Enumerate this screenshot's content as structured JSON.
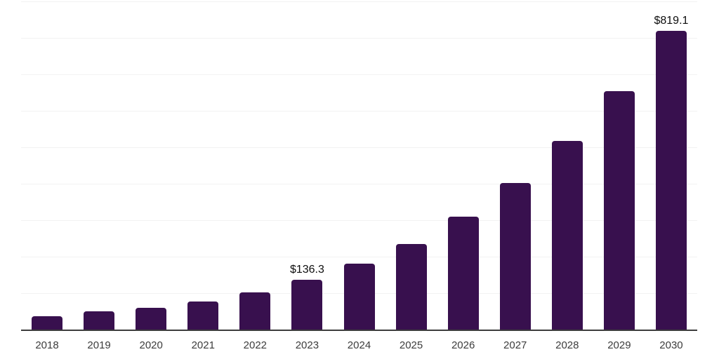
{
  "chart_data": {
    "type": "bar",
    "title": "",
    "xlabel": "",
    "ylabel": "",
    "categories": [
      "2018",
      "2019",
      "2020",
      "2021",
      "2022",
      "2023",
      "2024",
      "2025",
      "2026",
      "2027",
      "2028",
      "2029",
      "2030"
    ],
    "values": [
      37.5,
      50.0,
      60.2,
      77.9,
      102.9,
      136.3,
      180.8,
      235.2,
      309.6,
      401.3,
      516.7,
      653.8,
      819.1
    ],
    "ylim": [
      0,
      900
    ],
    "gridline_step": 100,
    "grid": "horizontal",
    "legend": "none",
    "y_axis_labels_visible": false,
    "data_labels": [
      {
        "category": "2023",
        "index": 5,
        "text": "$136.3"
      },
      {
        "category": "2030",
        "index": 12,
        "text": "$819.1"
      }
    ]
  },
  "colors": {
    "bar": "#38104e",
    "gridline": "#f2f2f2",
    "axis_line": "#3d3d3d",
    "tick_label": "#3c3c3c",
    "data_label": "#0d0d0d",
    "background": "#ffffff"
  }
}
